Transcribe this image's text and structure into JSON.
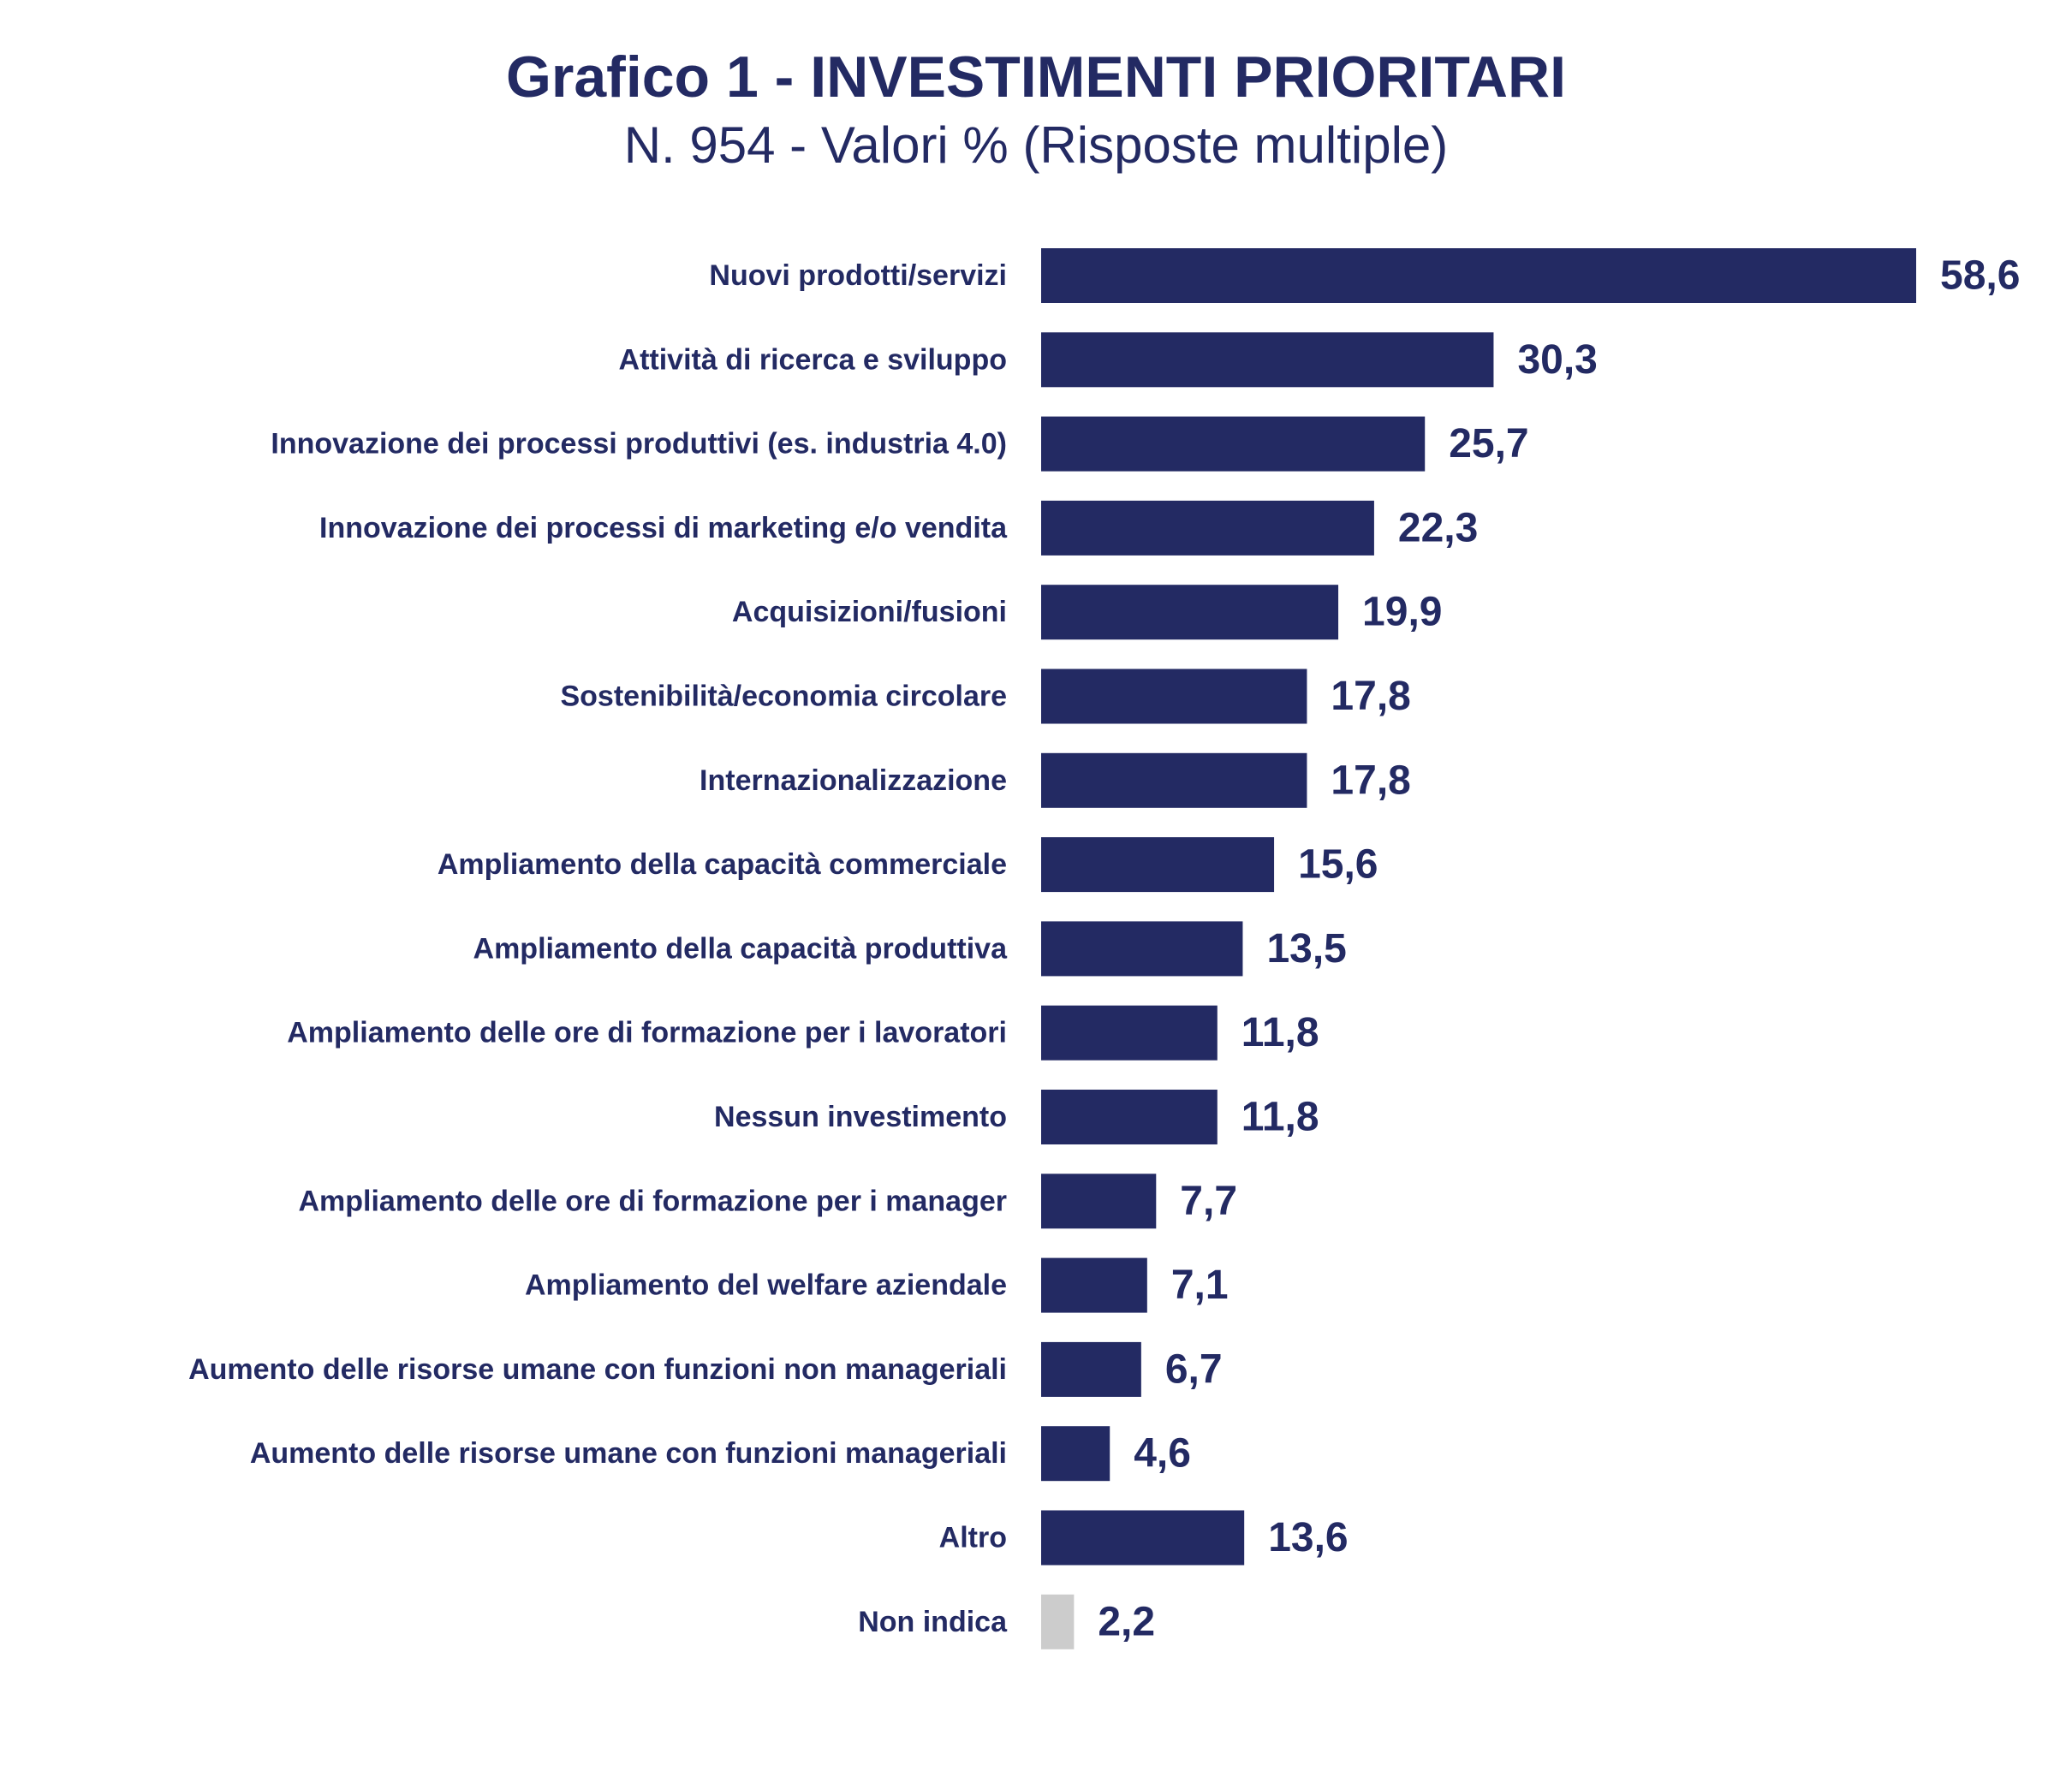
{
  "chart_data": {
    "type": "bar",
    "orientation": "horizontal",
    "title": "Grafico 1 - INVESTIMENTI PRIORITARI",
    "subtitle": "N. 954 - Valori % (Risposte multiple)",
    "categories": [
      "Nuovi prodotti/servizi",
      "Attività di ricerca e sviluppo",
      "Innovazione dei processi produttivi (es. industria 4.0)",
      "Innovazione dei processi di marketing e/o vendita",
      "Acquisizioni/fusioni",
      "Sostenibilità/economia circolare",
      "Internazionalizzazione",
      "Ampliamento della capacità commerciale",
      "Ampliamento della capacità produttiva",
      "Ampliamento delle ore di formazione per i lavoratori",
      "Nessun investimento",
      "Ampliamento delle ore di formazione per i manager",
      "Ampliamento del welfare aziendale",
      "Aumento delle risorse umane con funzioni non manageriali",
      "Aumento delle risorse umane con funzioni manageriali",
      "Altro",
      "Non indica"
    ],
    "values": [
      58.6,
      30.3,
      25.7,
      22.3,
      19.9,
      17.8,
      17.8,
      15.6,
      13.5,
      11.8,
      11.8,
      7.7,
      7.1,
      6.7,
      4.6,
      13.6,
      2.2
    ],
    "value_labels": [
      "58,6",
      "30,3",
      "25,7",
      "22,3",
      "19,9",
      "17,8",
      "17,8",
      "15,6",
      "13,5",
      "11,8",
      "11,8",
      "7,7",
      "7,1",
      "6,7",
      "4,6",
      "13,6",
      "2,2"
    ],
    "bar_colors": [
      "#232A63",
      "#232A63",
      "#232A63",
      "#232A63",
      "#232A63",
      "#232A63",
      "#232A63",
      "#232A63",
      "#232A63",
      "#232A63",
      "#232A63",
      "#232A63",
      "#232A63",
      "#232A63",
      "#232A63",
      "#232A63",
      "#CCCCCC"
    ],
    "text_color": "#232A63",
    "xlim": [
      0,
      58.6
    ],
    "grid": false,
    "legend": "none"
  }
}
